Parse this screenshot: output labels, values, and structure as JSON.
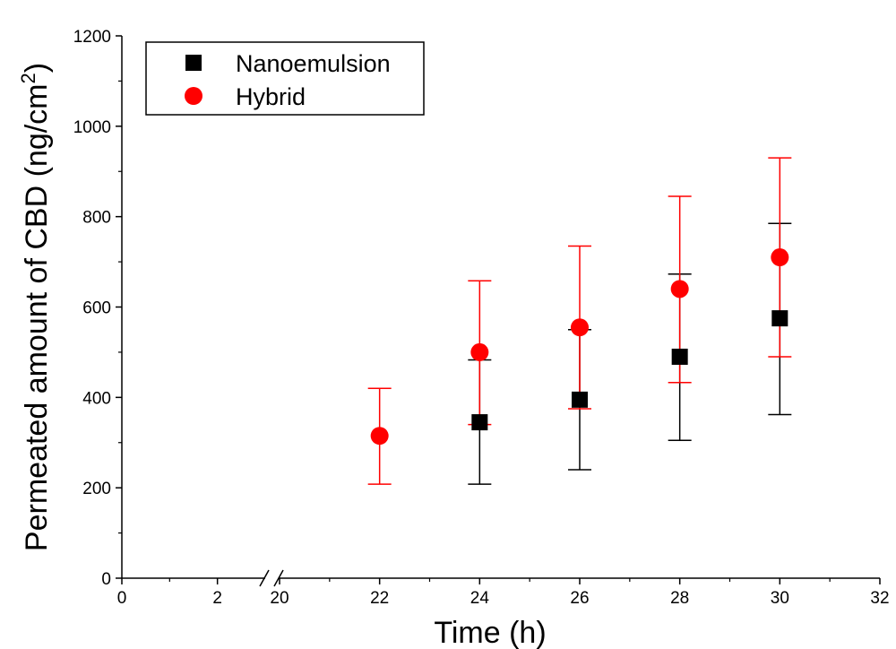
{
  "chart_data": {
    "type": "scatter",
    "xlabel": "Time (h)",
    "ylabel_main": "Permeated amount of CBD (ng/cm",
    "ylabel_sup": "2",
    "ylabel_end": ")",
    "x_axis_break": true,
    "xlim_left": [
      0,
      3
    ],
    "xlim_right": [
      20,
      32
    ],
    "x_ticks_left": [
      "0",
      "2"
    ],
    "x_ticks_right": [
      "20",
      "22",
      "24",
      "26",
      "28",
      "30",
      "32"
    ],
    "ylim": [
      0,
      1200
    ],
    "y_ticks": [
      "0",
      "200",
      "400",
      "600",
      "800",
      "1000",
      "1200"
    ],
    "grid": false,
    "legend_position": "top-left",
    "series": [
      {
        "name": "Nanoemulsion",
        "marker": "square",
        "color": "#000000",
        "x": [
          24,
          26,
          28,
          30
        ],
        "y": [
          345,
          395,
          490,
          575
        ],
        "err_low": [
          208,
          240,
          305,
          362
        ],
        "err_high": [
          483,
          550,
          673,
          785
        ]
      },
      {
        "name": "Hybrid",
        "marker": "circle",
        "color": "#ff0000",
        "x": [
          22,
          24,
          26,
          28,
          30
        ],
        "y": [
          315,
          500,
          555,
          640,
          710
        ],
        "err_low": [
          208,
          340,
          375,
          433,
          490
        ],
        "err_high": [
          420,
          658,
          735,
          845,
          930
        ]
      }
    ]
  }
}
